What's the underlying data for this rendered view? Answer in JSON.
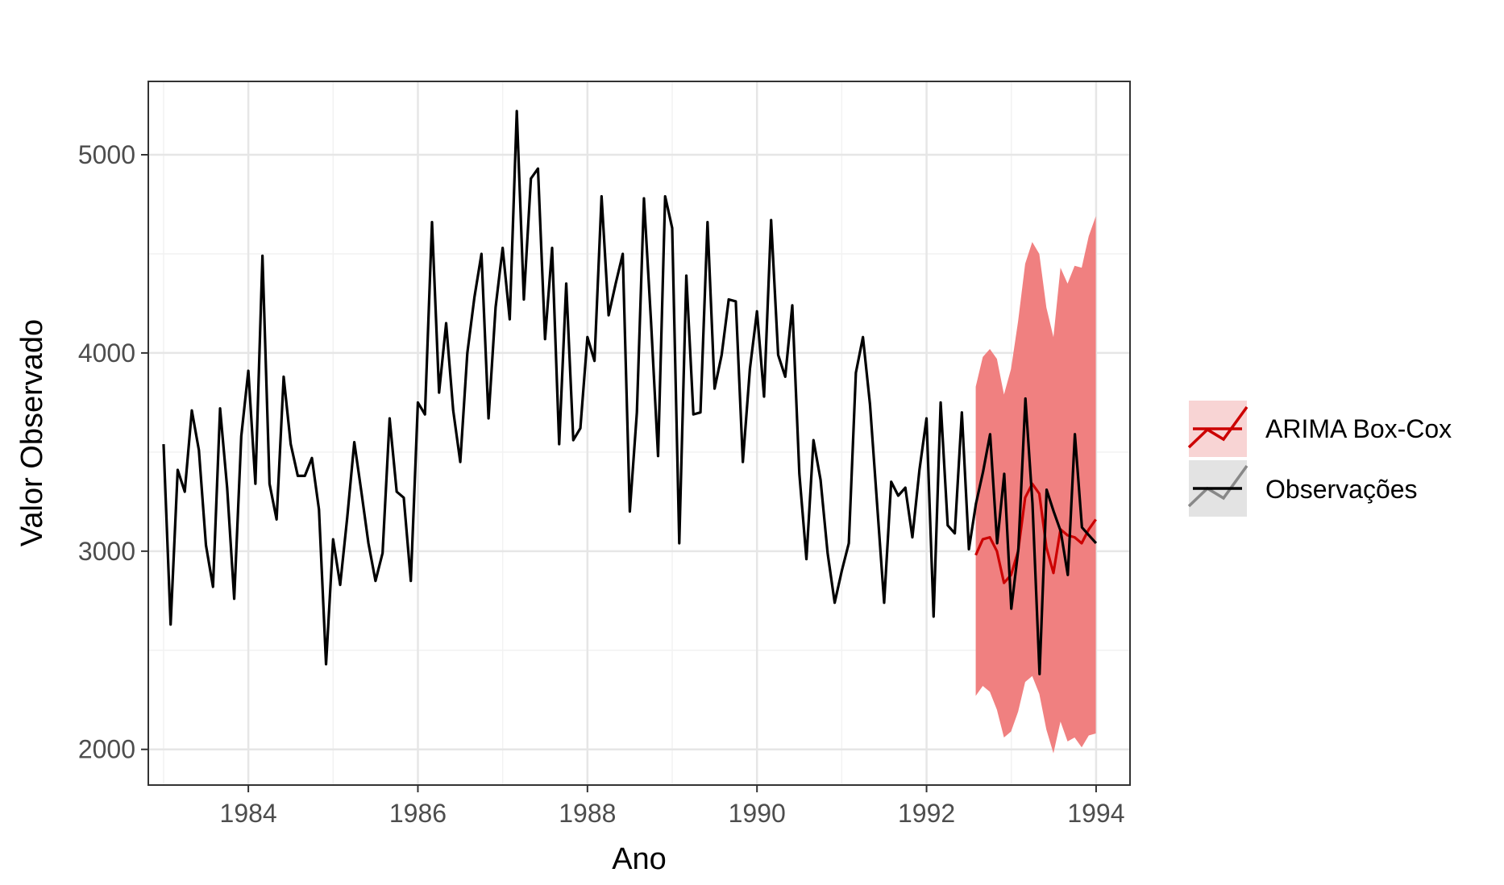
{
  "chart_data": {
    "type": "line",
    "xlabel": "Ano",
    "ylabel": "Valor Observado",
    "xlim": [
      1982.82,
      1994.4
    ],
    "ylim": [
      1820,
      5370
    ],
    "x_ticks": [
      1984,
      1986,
      1988,
      1990,
      1992,
      1994
    ],
    "x_tick_labels": [
      "1984",
      "1986",
      "1988",
      "1990",
      "1992",
      "1994"
    ],
    "y_ticks": [
      2000,
      3000,
      4000,
      5000
    ],
    "y_tick_labels": [
      "2000",
      "3000",
      "4000",
      "5000"
    ],
    "grid": true,
    "legend_position": "right",
    "colors": {
      "observed": "#000000",
      "forecast": "#cc0000",
      "band": "#f08080",
      "legend_forecast_bg": "#f8d4d4",
      "legend_observed_bg": "#e3e3e3",
      "grid_major": "#e6e6e6",
      "grid_minor": "#f2f2f2",
      "panel_border": "#333333"
    },
    "legend": [
      {
        "label": "ARIMA Box-Cox",
        "key": "forecast"
      },
      {
        "label": "Observações",
        "key": "observed"
      }
    ],
    "series": [
      {
        "name": "Observações",
        "x_start": 1983.0,
        "x_step": 0.08333,
        "values": [
          3540,
          2630,
          3410,
          3300,
          3710,
          3510,
          3030,
          2820,
          3720,
          3320,
          2760,
          3580,
          3910,
          3340,
          4490,
          3340,
          3160,
          3880,
          3540,
          3380,
          3380,
          3470,
          3210,
          2430,
          3060,
          2830,
          3170,
          3550,
          3300,
          3040,
          2850,
          2990,
          3670,
          3300,
          3270,
          2850,
          3750,
          3690,
          4660,
          3800,
          4150,
          3710,
          3450,
          4000,
          4280,
          4500,
          3670,
          4230,
          4530,
          4170,
          5220,
          4270,
          4880,
          4930,
          4070,
          4530,
          3540,
          4350,
          3560,
          3620,
          4080,
          3960,
          4790,
          4190,
          4350,
          4500,
          3200,
          3700,
          4780,
          4160,
          3480,
          4790,
          4630,
          3040,
          4390,
          3690,
          3700,
          4660,
          3820,
          3990,
          4270,
          4260,
          3450,
          3920,
          4210,
          3780,
          4670,
          3990,
          3880,
          4240,
          3390,
          2960,
          3560,
          3360,
          2990,
          2740,
          2900,
          3040,
          3900,
          4080,
          3740,
          3240,
          2740,
          3350,
          3280,
          3320,
          3070,
          3410,
          3670,
          2670,
          3750,
          3130,
          3090,
          3700,
          3010,
          3240,
          3400,
          3590,
          3040,
          3390,
          2710,
          3010,
          3770,
          3240,
          2380,
          3310,
          3200,
          3100,
          2880,
          3590,
          3120,
          3080,
          3040
        ]
      },
      {
        "name": "ARIMA Box-Cox",
        "x_start": 1992.58,
        "x_step": 0.08333,
        "values": [
          2980,
          3060,
          3070,
          3000,
          2840,
          2880,
          3000,
          3270,
          3340,
          3290,
          3020,
          2890,
          3110,
          3080,
          3070,
          3040,
          3110,
          3160
        ],
        "lower": [
          2270,
          2320,
          2290,
          2200,
          2060,
          2090,
          2190,
          2340,
          2370,
          2280,
          2100,
          1980,
          2140,
          2040,
          2060,
          2010,
          2070,
          2080
        ],
        "upper": [
          3830,
          3980,
          4020,
          3970,
          3790,
          3920,
          4160,
          4450,
          4560,
          4500,
          4230,
          4080,
          4430,
          4350,
          4440,
          4430,
          4590,
          4690
        ]
      }
    ]
  }
}
